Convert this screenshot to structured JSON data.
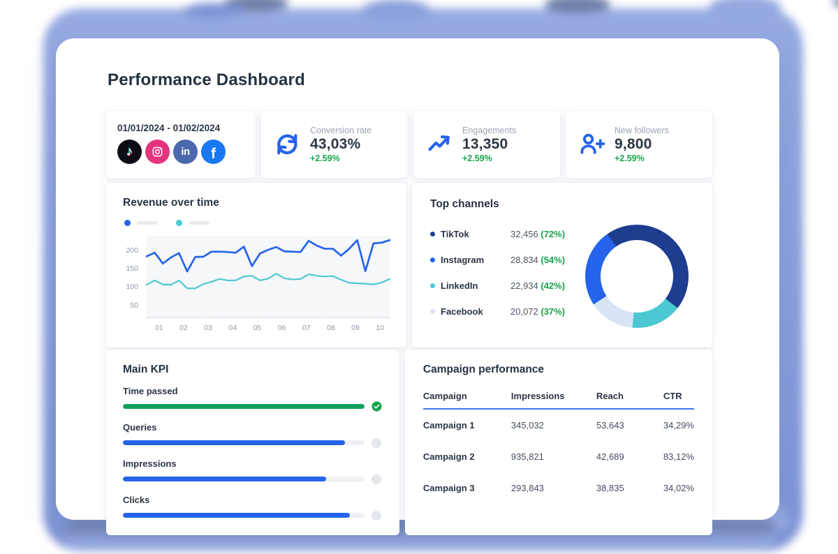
{
  "page": {
    "title": "Performance Dashboard"
  },
  "filters": {
    "date_range": "01/01/2024 - 01/02/2024",
    "networks": [
      {
        "name": "TikTok",
        "color": "#0c0d12"
      },
      {
        "name": "Instagram",
        "color": "#e6337e"
      },
      {
        "name": "LinkedIn",
        "color": "#4c68ae"
      },
      {
        "name": "Facebook",
        "color": "#1877f2"
      }
    ]
  },
  "stats": [
    {
      "id": "conversion",
      "icon": "sync-icon",
      "label": "Conversion rate",
      "value": "43,03%",
      "delta": "+2.59%"
    },
    {
      "id": "engagements",
      "icon": "trend-up-icon",
      "label": "Engagements",
      "value": "13,350",
      "delta": "+2.59%"
    },
    {
      "id": "followers",
      "icon": "user-add-icon",
      "label": "New followers",
      "value": "9,800",
      "delta": "+2.59%"
    }
  ],
  "revenue": {
    "title": "Revenue over time",
    "legend": [
      {
        "series": "series-1",
        "color": "#2563eb"
      },
      {
        "series": "series-2",
        "color": "#4cc8d2"
      }
    ]
  },
  "channels": {
    "title": "Top channels",
    "items": [
      {
        "name": "TikTok",
        "value": "32,456",
        "pct": "(72%)",
        "color": "#1d3d8f"
      },
      {
        "name": "Instagram",
        "value": "28,834",
        "pct": "(54%)",
        "color": "#2563eb"
      },
      {
        "name": "LinkedIn",
        "value": "22,934",
        "pct": "(42%)",
        "color": "#4cc8d2"
      },
      {
        "name": "Facebook",
        "value": "20,072",
        "pct": "(37%)",
        "color": "#d8e4f6"
      }
    ]
  },
  "kpi": {
    "title": "Main KPI",
    "items": [
      {
        "label": "Time passed",
        "percent": 100,
        "complete": true,
        "color": "#12a05c"
      },
      {
        "label": "Queries",
        "percent": 92,
        "complete": false,
        "color": "#2563eb"
      },
      {
        "label": "Impressions",
        "percent": 84,
        "complete": false,
        "color": "#2563eb"
      },
      {
        "label": "Clicks",
        "percent": 94,
        "complete": false,
        "color": "#2563eb"
      }
    ]
  },
  "campaigns": {
    "title": "Campaign performance",
    "columns": [
      "Campaign",
      "Impressions",
      "Reach",
      "CTR"
    ],
    "rows": [
      [
        "Campaign 1",
        "345,032",
        "53,643",
        "34,29%"
      ],
      [
        "Campaign 2",
        "935,821",
        "42,689",
        "83,12%"
      ],
      [
        "Campaign 3",
        "293,843",
        "38,835",
        "34,02%"
      ]
    ]
  },
  "chart_data": [
    {
      "id": "revenue_over_time",
      "type": "line",
      "title": "Revenue over time",
      "xlabel": "",
      "ylabel": "",
      "x_labels": [
        "01",
        "02",
        "03",
        "04",
        "05",
        "06",
        "07",
        "08",
        "09",
        "10"
      ],
      "y_ticks": [
        50,
        100,
        150,
        200
      ],
      "y_range": [
        15,
        240
      ],
      "grid": false,
      "legend_position": "top-left (unlabeled skeleton swatches)",
      "series": [
        {
          "name": "series-1",
          "color": "#2563eb",
          "values": [
            183,
            193,
            163,
            180,
            192,
            141,
            181,
            182,
            196,
            196,
            195,
            193,
            210,
            156,
            191,
            201,
            209,
            197,
            196,
            195,
            226,
            213,
            204,
            204,
            185,
            204,
            228,
            142,
            219,
            221,
            228
          ]
        },
        {
          "name": "series-2",
          "color": "#4cc8d2",
          "values": [
            104,
            116,
            105,
            104,
            116,
            94,
            94,
            106,
            112,
            120,
            116,
            116,
            127,
            129,
            116,
            121,
            135,
            122,
            119,
            120,
            133,
            129,
            127,
            128,
            118,
            109,
            108,
            107,
            105,
            110,
            120
          ]
        }
      ]
    },
    {
      "id": "top_channels_donut",
      "type": "pie",
      "donut": true,
      "start_angle_deg": -35,
      "segments": [
        {
          "name": "TikTok",
          "color": "#1d3d8f",
          "sweep_deg": 163
        },
        {
          "name": "LinkedIn",
          "color": "#4cc8d2",
          "sweep_deg": 57
        },
        {
          "name": "Facebook",
          "color": "#d8e4f6",
          "sweep_deg": 52
        },
        {
          "name": "Instagram",
          "color": "#2563eb",
          "sweep_deg": 88
        }
      ]
    }
  ]
}
